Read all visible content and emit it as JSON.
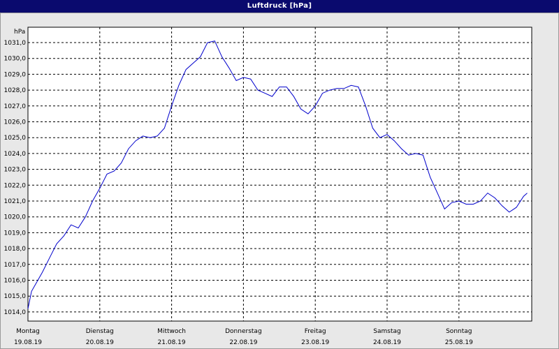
{
  "window": {
    "title": "Luftdruck [hPa]"
  },
  "chart_data": {
    "type": "line",
    "title": "Luftdruck [hPa]",
    "ylabel": "hPa",
    "ylim": [
      1013.5,
      1031.5
    ],
    "xlim": [
      0,
      7
    ],
    "grid": true,
    "yticks": [
      "1014,0",
      "1015,0",
      "1016,0",
      "1017,0",
      "1018,0",
      "1019,0",
      "1020,0",
      "1021,0",
      "1022,0",
      "1023,0",
      "1024,0",
      "1025,0",
      "1026,0",
      "1027,0",
      "1028,0",
      "1029,0",
      "1030,0",
      "1031,0"
    ],
    "xticks": [
      {
        "day": "Montag",
        "date": "19.08.19"
      },
      {
        "day": "Dienstag",
        "date": "20.08.19"
      },
      {
        "day": "Mittwoch",
        "date": "21.08.19"
      },
      {
        "day": "Donnerstag",
        "date": "22.08.19"
      },
      {
        "day": "Freitag",
        "date": "23.08.19"
      },
      {
        "day": "Samstag",
        "date": "24.08.19"
      },
      {
        "day": "Sonntag",
        "date": "25.08.19"
      }
    ],
    "line_color": "#0000cc",
    "series": [
      {
        "x": [
          0,
          0.05,
          0.1,
          0.2,
          0.3,
          0.4,
          0.5,
          0.6,
          0.7,
          0.8,
          0.9,
          1.0,
          1.1,
          1.2,
          1.3,
          1.4,
          1.5,
          1.6,
          1.7,
          1.8,
          1.9,
          2.0,
          2.1,
          2.2,
          2.3,
          2.4,
          2.5,
          2.6,
          2.7,
          2.8,
          2.9,
          3.0,
          3.1,
          3.2,
          3.3,
          3.4,
          3.5,
          3.6,
          3.7,
          3.8,
          3.9,
          4.0,
          4.1,
          4.2,
          4.3,
          4.4,
          4.5,
          4.6,
          4.7,
          4.8,
          4.9,
          5.0,
          5.1,
          5.2,
          5.3,
          5.4,
          5.5,
          5.6,
          5.7,
          5.8,
          5.9,
          6.0,
          6.1,
          6.2,
          6.3,
          6.4,
          6.5,
          6.6,
          6.7,
          6.8,
          6.9,
          6.95
        ],
        "y": [
          1014.2,
          1015.3,
          1015.7,
          1016.5,
          1017.4,
          1018.3,
          1018.8,
          1019.5,
          1019.3,
          1020.0,
          1021.0,
          1021.8,
          1022.7,
          1022.9,
          1023.4,
          1024.3,
          1024.8,
          1025.1,
          1025.0,
          1025.1,
          1025.6,
          1027.0,
          1028.3,
          1029.3,
          1029.7,
          1030.1,
          1031.0,
          1031.1,
          1030.1,
          1029.4,
          1028.6,
          1028.8,
          1028.7,
          1028.0,
          1027.8,
          1027.6,
          1028.2,
          1028.2,
          1027.6,
          1026.8,
          1026.5,
          1027.0,
          1027.8,
          1028.0,
          1028.1,
          1028.1,
          1028.3,
          1028.2,
          1027.0,
          1025.6,
          1025.0,
          1025.2,
          1024.8,
          1024.3,
          1023.9,
          1024.0,
          1023.9,
          1022.5,
          1021.5,
          1020.5,
          1020.9,
          1021.0,
          1020.8,
          1020.8,
          1021.0,
          1021.5,
          1021.2,
          1020.7,
          1020.3,
          1020.6,
          1021.3,
          1021.5
        ]
      }
    ]
  }
}
